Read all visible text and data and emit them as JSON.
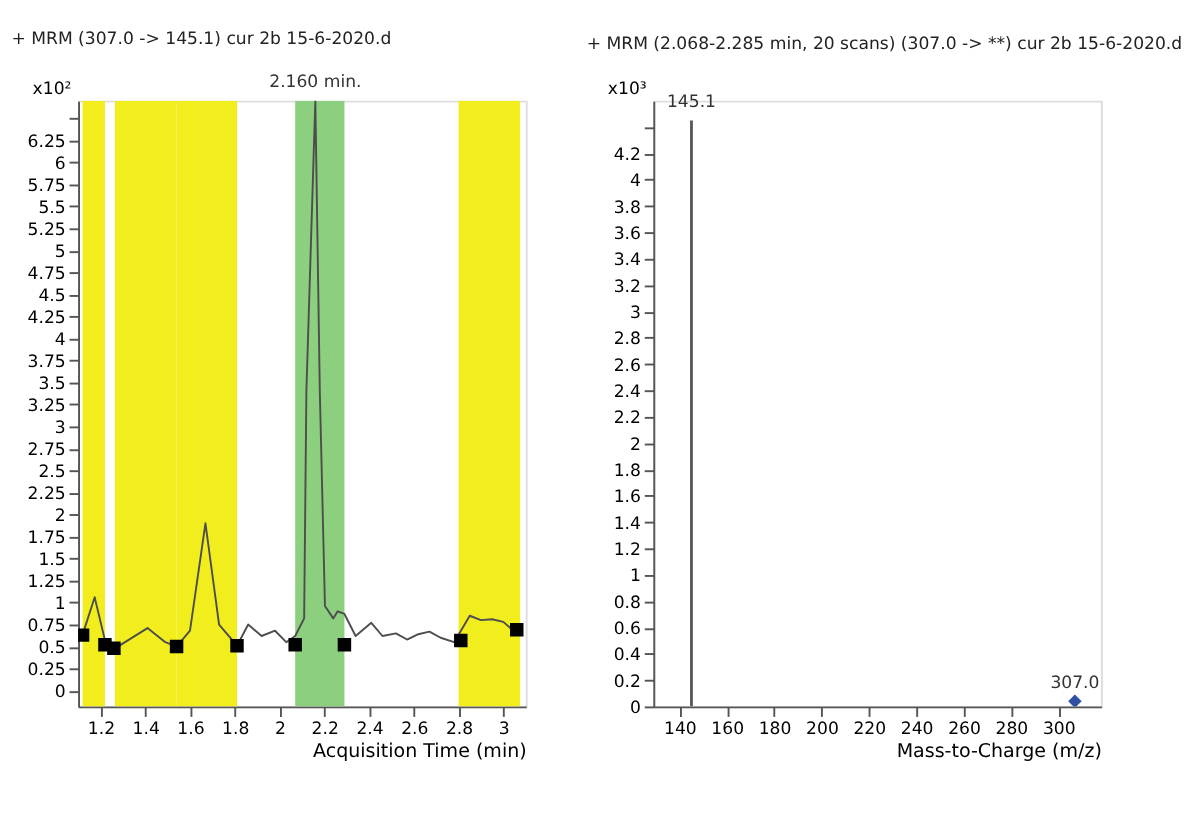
{
  "chart_data": [
    {
      "type": "line",
      "title": "+ MRM (307.0 -> 145.1) cur 2b  15-6-2020.d",
      "xlabel": "Acquisition Time (min)",
      "ylabel": "x10²",
      "xlim": [
        1.1,
        3.1
      ],
      "xticks": [
        1.2,
        1.4,
        1.6,
        1.8,
        2,
        2.2,
        2.4,
        2.6,
        2.8,
        3
      ],
      "ylim": [
        -0.18,
        6.7
      ],
      "yticks": [
        0,
        0.25,
        0.5,
        0.75,
        1,
        1.25,
        1.5,
        1.75,
        2,
        2.25,
        2.5,
        2.75,
        3,
        3.25,
        3.5,
        3.75,
        4,
        4.25,
        4.5,
        4.75,
        5,
        5.25,
        5.5,
        5.75,
        6,
        6.25,
        {
          "value": 6.5,
          "label": null
        }
      ],
      "bands": [
        {
          "axis": "x",
          "from": 1.12,
          "to": 1.22,
          "color": "#f2ee1e"
        },
        {
          "axis": "x",
          "from": 1.265,
          "to": 1.54,
          "color": "#f2ee1e"
        },
        {
          "axis": "x",
          "from": 1.54,
          "to": 1.81,
          "color": "#f2ee1e"
        },
        {
          "axis": "x",
          "from": 2.07,
          "to": 2.29,
          "color": "#8ccf7e"
        },
        {
          "axis": "x",
          "from": 2.8,
          "to": 3.075,
          "color": "#f2ee1e"
        }
      ],
      "annotations": [
        {
          "text": "2.160 min.",
          "x": 2.16,
          "y": 6.7
        }
      ],
      "series": [
        {
          "color": "#4d4d4d",
          "x": [
            1.122,
            1.174,
            1.226,
            1.265,
            1.41,
            1.49,
            1.54,
            1.6,
            1.669,
            1.73,
            1.81,
            1.86,
            1.92,
            1.98,
            2.03,
            2.07,
            2.11,
            2.12,
            2.16,
            2.18,
            2.203,
            2.24,
            2.26,
            2.29,
            2.34,
            2.41,
            2.46,
            2.52,
            2.57,
            2.62,
            2.67,
            2.72,
            2.78,
            2.85,
            2.9,
            2.95,
            3.0,
            3.04
          ],
          "values": [
            0.65,
            1.06,
            0.51,
            0.48,
            0.71,
            0.55,
            0.5,
            0.68,
            1.9,
            0.75,
            0.51,
            0.75,
            0.62,
            0.68,
            0.55,
            0.62,
            0.82,
            3.4,
            6.7,
            3.4,
            0.96,
            0.82,
            0.9,
            0.87,
            0.62,
            0.77,
            0.62,
            0.65,
            0.58,
            0.64,
            0.67,
            0.6,
            0.55,
            0.85,
            0.8,
            0.81,
            0.78,
            0.69
          ]
        },
        {
          "type": "scatter",
          "marker": "square",
          "color": "#000000",
          "x": [
            1.12,
            1.22,
            1.26,
            1.54,
            1.81,
            2.07,
            2.29,
            2.81,
            3.06
          ],
          "values": [
            0.63,
            0.52,
            0.48,
            0.5,
            0.51,
            0.52,
            0.52,
            0.57,
            0.69
          ]
        }
      ]
    },
    {
      "type": "bar",
      "title": "+ MRM (2.068-2.285 min, 20 scans) (307.0 -> **) cur 2b  15-6-2020.d",
      "xlabel": "Mass-to-Charge (m/z)",
      "ylabel": "x10³",
      "xlim": [
        129,
        318
      ],
      "xticks": [
        140,
        160,
        180,
        200,
        220,
        240,
        260,
        280,
        300
      ],
      "ylim": [
        0,
        4.6
      ],
      "yticks": [
        0,
        0.2,
        0.4,
        0.6,
        0.8,
        1,
        1.2,
        1.4,
        1.6,
        1.8,
        2,
        2.2,
        2.4,
        2.6,
        2.8,
        3,
        3.2,
        3.4,
        3.6,
        3.8,
        4,
        4.2,
        {
          "value": 4.4,
          "label": null
        }
      ],
      "annotations": [
        {
          "text": "145.1",
          "x": 145.1,
          "y": 4.45
        },
        {
          "text": "307.0",
          "x": 307.0,
          "y": 0.04
        }
      ],
      "series": [
        {
          "color": "#595959",
          "x": [
            145.1
          ],
          "values": [
            4.45
          ]
        },
        {
          "type": "scatter",
          "marker": "diamond",
          "color": "#2e4fa3",
          "x": [
            307.0
          ],
          "values": [
            0.04
          ]
        }
      ]
    }
  ]
}
